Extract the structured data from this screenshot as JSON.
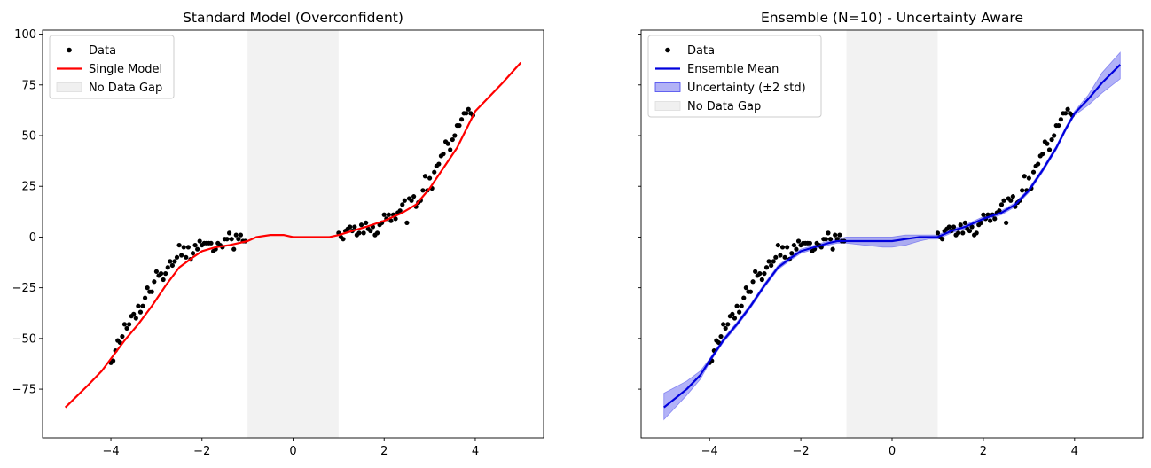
{
  "chart_data": [
    {
      "type": "scatter",
      "title": "Standard Model (Overconfident)",
      "xlabel": "",
      "ylabel": "",
      "xlim": [
        -5.5,
        5.5
      ],
      "ylim": [
        -99,
        102
      ],
      "xticks": [
        -4,
        -2,
        0,
        2,
        4
      ],
      "xtick_labels": [
        "−4",
        "−2",
        "0",
        "2",
        "4"
      ],
      "yticks": [
        -75,
        -50,
        -25,
        0,
        25,
        50,
        75,
        100
      ],
      "ytick_labels": [
        "−75",
        "−50",
        "−25",
        "0",
        "25",
        "50",
        "75",
        "100"
      ],
      "show_yticklabels": true,
      "grid": false,
      "legend_position": "top-left",
      "gap_region": [
        -1,
        1
      ],
      "series": [
        {
          "name": "Data",
          "kind": "scatter",
          "color": "#000000",
          "x": [
            -4.0,
            -3.95,
            -3.9,
            -3.85,
            -3.8,
            -3.75,
            -3.7,
            -3.65,
            -3.6,
            -3.55,
            -3.5,
            -3.45,
            -3.4,
            -3.35,
            -3.3,
            -3.25,
            -3.2,
            -3.15,
            -3.1,
            -3.05,
            -3.0,
            -2.95,
            -2.9,
            -2.85,
            -2.8,
            -2.75,
            -2.7,
            -2.65,
            -2.6,
            -2.55,
            -2.5,
            -2.45,
            -2.4,
            -2.35,
            -2.3,
            -2.25,
            -2.2,
            -2.15,
            -2.1,
            -2.05,
            -2.0,
            -1.95,
            -1.9,
            -1.85,
            -1.8,
            -1.75,
            -1.7,
            -1.65,
            -1.6,
            -1.55,
            -1.5,
            -1.45,
            -1.4,
            -1.35,
            -1.3,
            -1.25,
            -1.2,
            -1.15,
            -1.1,
            -1.05,
            1.0,
            1.05,
            1.1,
            1.15,
            1.2,
            1.25,
            1.3,
            1.35,
            1.4,
            1.45,
            1.5,
            1.55,
            1.6,
            1.65,
            1.7,
            1.75,
            1.8,
            1.85,
            1.9,
            1.95,
            2.0,
            2.05,
            2.1,
            2.15,
            2.2,
            2.25,
            2.3,
            2.35,
            2.4,
            2.45,
            2.5,
            2.55,
            2.6,
            2.65,
            2.7,
            2.75,
            2.8,
            2.85,
            2.9,
            2.95,
            3.0,
            3.05,
            3.1,
            3.15,
            3.2,
            3.25,
            3.3,
            3.35,
            3.4,
            3.45,
            3.5,
            3.55,
            3.6,
            3.65,
            3.7,
            3.75,
            3.8,
            3.85,
            3.9,
            3.95
          ],
          "y": [
            -62,
            -61,
            -56,
            -51,
            -52,
            -49,
            -43,
            -45,
            -43,
            -39,
            -38,
            -40,
            -34,
            -37,
            -34,
            -30,
            -25,
            -27,
            -27,
            -22,
            -17,
            -19,
            -18,
            -21,
            -18,
            -15,
            -12,
            -14,
            -12,
            -10,
            -4,
            -9,
            -5,
            -10,
            -5,
            -11,
            -8,
            -4,
            -6,
            -2,
            -4,
            -3,
            -3,
            -3,
            -3,
            -7,
            -6,
            -3,
            -4,
            -5,
            -1,
            -1,
            2,
            -1,
            -6,
            1,
            -1,
            1,
            -2,
            -2,
            2,
            0,
            -1,
            3,
            4,
            5,
            3,
            5,
            1,
            2,
            6,
            2,
            7,
            4,
            3,
            5,
            1,
            2,
            6,
            7,
            11,
            9,
            11,
            8,
            11,
            9,
            12,
            13,
            16,
            18,
            7,
            19,
            18,
            20,
            15,
            17,
            18,
            23,
            30,
            23,
            29,
            24,
            32,
            35,
            36,
            40,
            41,
            47,
            46,
            43,
            48,
            50,
            55,
            55,
            58,
            61,
            61,
            63,
            61,
            60
          ],
          "point_order": "as listed"
        },
        {
          "name": "Single Model",
          "kind": "line",
          "color": "#ff0000",
          "x": [
            -5.0,
            -4.5,
            -4.2,
            -4.0,
            -3.7,
            -3.4,
            -3.1,
            -2.8,
            -2.5,
            -2.2,
            -2.0,
            -1.7,
            -1.4,
            -1.2,
            -1.0,
            -0.8,
            -0.5,
            -0.2,
            0.0,
            0.3,
            0.6,
            0.8,
            1.0,
            1.3,
            1.6,
            2.0,
            2.4,
            2.7,
            3.0,
            3.3,
            3.6,
            3.8,
            4.0,
            4.3,
            4.6,
            5.0
          ],
          "y": [
            -84,
            -73,
            -66,
            -60,
            -51,
            -43,
            -34,
            -24,
            -15,
            -10,
            -7,
            -5,
            -4,
            -3,
            -2,
            0,
            1,
            1,
            0,
            0,
            0,
            0,
            1,
            3,
            5,
            8,
            12,
            16,
            24,
            34,
            44,
            53,
            62,
            69,
            76,
            86
          ]
        }
      ],
      "legend": [
        {
          "label": "Data",
          "marker": "dot",
          "color": "#000000"
        },
        {
          "label": "Single Model",
          "marker": "line",
          "color": "#ff0000"
        },
        {
          "label": "No Data Gap",
          "marker": "patch",
          "color": "#e6e6e6"
        }
      ]
    },
    {
      "type": "scatter",
      "title": "Ensemble (N=10) - Uncertainty Aware",
      "xlabel": "",
      "ylabel": "",
      "xlim": [
        -5.5,
        5.5
      ],
      "ylim": [
        -99,
        102
      ],
      "xticks": [
        -4,
        -2,
        0,
        2,
        4
      ],
      "xtick_labels": [
        "−4",
        "−2",
        "0",
        "2",
        "4"
      ],
      "yticks": [
        -75,
        -50,
        -25,
        0,
        25,
        50,
        75,
        100
      ],
      "ytick_labels": [
        "",
        "",
        "",
        "",
        "",
        "",
        "",
        ""
      ],
      "show_yticklabels": false,
      "grid": false,
      "legend_position": "top-left",
      "gap_region": [
        -1,
        1
      ],
      "series": [
        {
          "name": "Data",
          "kind": "scatter",
          "color": "#000000",
          "same_as_left_panel": true
        },
        {
          "name": "Ensemble Mean",
          "kind": "line",
          "color": "#0000dd",
          "x": [
            -5.0,
            -4.5,
            -4.2,
            -4.0,
            -3.7,
            -3.4,
            -3.1,
            -2.8,
            -2.5,
            -2.2,
            -2.0,
            -1.7,
            -1.4,
            -1.2,
            -1.0,
            -0.6,
            -0.2,
            0.0,
            0.3,
            0.6,
            0.8,
            1.0,
            1.3,
            1.6,
            2.0,
            2.4,
            2.7,
            3.0,
            3.3,
            3.6,
            3.8,
            4.0,
            4.3,
            4.6,
            5.0
          ],
          "y": [
            -84,
            -75,
            -68,
            -61,
            -51,
            -43,
            -34,
            -24,
            -15,
            -10,
            -7,
            -5,
            -3,
            -2,
            -2,
            -2,
            -2,
            -2,
            -1,
            0,
            0,
            0,
            3,
            5,
            9,
            12,
            16,
            23,
            33,
            44,
            53,
            61,
            68,
            76,
            85
          ]
        },
        {
          "name": "Uncertainty (±2 std)",
          "kind": "band",
          "color": "#5555ee",
          "x": [
            -5.0,
            -4.5,
            -4.2,
            -4.0,
            -3.7,
            -3.4,
            -3.1,
            -2.8,
            -2.5,
            -2.2,
            -2.0,
            -1.7,
            -1.4,
            -1.2,
            -1.0,
            -0.6,
            -0.2,
            0.0,
            0.3,
            0.6,
            0.8,
            1.0,
            1.3,
            1.6,
            2.0,
            2.4,
            2.7,
            3.0,
            3.3,
            3.6,
            3.8,
            4.0,
            4.3,
            4.6,
            5.0
          ],
          "lower": [
            -90,
            -78,
            -70,
            -62,
            -52,
            -44,
            -35,
            -25,
            -16,
            -11,
            -8,
            -6,
            -4,
            -3,
            -3,
            -4,
            -5,
            -5,
            -4,
            -2,
            -1,
            -1,
            2,
            4,
            8,
            11,
            15,
            22,
            32,
            43,
            52,
            60,
            65,
            71,
            78
          ],
          "upper": [
            -77,
            -71,
            -66,
            -60,
            -50,
            -42,
            -33,
            -23,
            -14,
            -9,
            -6,
            -4,
            -2,
            -1,
            0,
            0,
            0,
            0,
            1,
            1,
            1,
            1,
            4,
            6,
            10,
            13,
            17,
            24,
            34,
            45,
            54,
            62,
            70,
            81,
            91
          ]
        }
      ],
      "legend": [
        {
          "label": "Data",
          "marker": "dot",
          "color": "#000000"
        },
        {
          "label": "Ensemble Mean",
          "marker": "line",
          "color": "#0000dd"
        },
        {
          "label": "Uncertainty (±2 std)",
          "marker": "patch",
          "color": "#aaaaf5"
        },
        {
          "label": "No Data Gap",
          "marker": "patch",
          "color": "#e6e6e6"
        }
      ]
    }
  ]
}
